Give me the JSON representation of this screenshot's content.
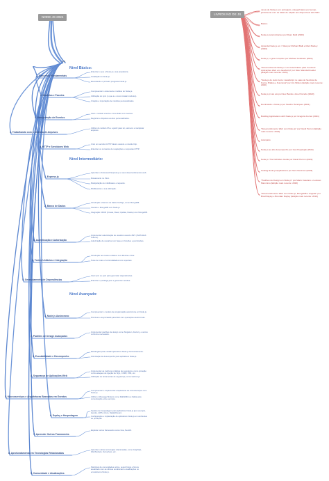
{
  "left_root": {
    "title": "NODE JS 2024"
  },
  "right_root": {
    "title": "LIVROS NO DE JS"
  },
  "hub_label": "nodl",
  "sections": [
    {
      "title": "Nível Básico:"
    },
    {
      "title": "Nível Intermediário:"
    },
    {
      "title": "Nível Avançado:"
    }
  ],
  "topics": [
    {
      "label": "1. Conceitos Fundamentais",
      "leaves": [
        "Entender o que é Node.js e sua arquitetura.",
        "Instalação do Node.js.",
        "Executando o primeiro programa Node.js."
      ]
    },
    {
      "label": "2. Módulos e Pacotes",
      "leaves": [
        "Compreender o sistema de módulos do Node.js.",
        "Utilização do npm (o que é e como instalar módulos).",
        "Criação e importação de módulos personalizados."
      ]
    },
    {
      "label": "3. Manipulação de Eventos",
      "leaves": [
        "Usar o módulo events e como lidar com eventos.",
        "Registrar e disparar eventos personalizados."
      ]
    },
    {
      "label": "4. Trabalhando com o Sistema de Arquivos",
      "leaves": [
        "Utilizar do módulo FS e a partir para ler, escrever e manipular arquivos."
      ]
    },
    {
      "label": "5. HTTP e Servidores Web",
      "leaves": [
        "Criar um servidor HTTP básico usando o módulo http.",
        "Entender os conceitos de requisições e respostas HTTP."
      ]
    },
    {
      "label": "1. Express.js",
      "leaves": [
        "Aprender o framework Express.js e seus desenvolvimentos web.",
        "Roteamento no JSLc.",
        "Manipulação de middleware e requests.",
        "Middlewares e sua utilização."
      ]
    },
    {
      "label": "2. Banco de Dados",
      "leaves": [
        "Introdução a bancos de dados NoSQL, como MongoDB.",
        "Usando o MongoDB com Node.js.",
        "Integração CRUD (Create, Read, Update, Delete) com MongoDB."
      ]
    },
    {
      "label": "3. Autenticação e Autorização",
      "leaves": [
        "Implementar autenticação de usuários usando JWT (JSON Web Tokens).",
        "Autorização de usuários com base em funções e permissões."
      ]
    },
    {
      "label": "4. Testes Unitários e Integração",
      "leaves": [
        "Introdução aos testes unitários com Mocha e Chai.",
        "Teste de rotas e funcionalidades com supertest."
      ]
    },
    {
      "label": "5. Gerenciamento de Dependências",
      "leaves": [
        "Usar npm ou yarn para gerenciar dependências.",
        "Entender o package.json e gerenciar versões."
      ]
    },
    {
      "label": "1. Node.js Assíncrono",
      "leaves": [
        "Compreender o modelo de programação assíncrona em Node.js.",
        "Promises e async/await para lidar com operações assíncronas."
      ]
    },
    {
      "label": "2. Padrões de Design Avançados",
      "leaves": [
        "Implementar padrões de design como Singleton, Factory, e outros conforme necessário."
      ]
    },
    {
      "label": "3. Escalabilidade e Desempenho",
      "leaves": [
        "Estratégias para escalar aplicativos Node.js horizontalmente.",
        "Otimização de desempenho para aplicativos Node.js."
      ]
    },
    {
      "label": "4. Segurança de Aplicações Web",
      "leaves": [
        "Implementar as melhores práticas de segurança, como proteção contra ataques de injeção de SQL, CSRF, XSS, etc.",
        "Utilização de ferramentas de segurança, como Helmet.js."
      ]
    },
    {
      "label": "5. Microsserviços e Arquiteturas Baseadas em Eventos",
      "leaves": [
        "Compreender e implementar arquiteturas de microsserviços com Node.js.",
        "Utilizar o Message Brokers como RabbitMQ ou Kafka para comunicação entre serviços."
      ]
    },
    {
      "label": "6. Deploy e Hospedagem",
      "leaves": [
        "Opções de hospedagem para aplicativos Node.js (por exemplo, Heroku, AWS, Azure, DigitalOcean).",
        "Configuração e implantação de aplicativos Node.js em ambientes de produção."
      ]
    },
    {
      "label": "7. Aprender Outros Frameworks",
      "leaves": [
        "Explorar outros frameworks como Koa, NestJS."
      ]
    },
    {
      "label": "8. Aprofundamento em Tecnologias Relacionadas",
      "leaves": [
        "Aprender outras tecnologias relacionadas, como GraphQL, WebSockets, Serverless, etc."
      ]
    },
    {
      "label": "9. Comunidade e Atualizações",
      "leaves": [
        "Participar de comunidades online, seguir blogs e fóruns atualizado com as últimas tendências e atualizações no ecossistema Node.js."
      ]
    }
  ],
  "books": [
    "Jesus de Node.js em português, categorizados por tempo, juntamente com as datas de edição aos disponíveis até 2024:",
    "Básico",
    "Node.js para Iniciantes por Ryan Dahl (2020)",
    "Aprenda Node.js em 7 dias por Richard Balk e Marc Baxley (2020)",
    "Node.js, o guia completo por Michael Goldstein (2021)",
    "\"Desenvolvendo Node.js: Um Guia Prático para Construir Aplicações Web em JavaScript\" por Marc Wandschneider (Edição mais recente: 2021)",
    "\"Node.js do Jeito Certo: JavaScript no Lado do Servidor de Forma Prática e Funcional\" por Jim Wilson (Edição mais recente: 2020)",
    "Node.js pr ato ato por Alex Banks e Eve Porcello (2020)",
    "Dominando o Node.js por Sandro Henriques (2021)",
    "Building Applications with Node.js por Gregório Ferraz (2021)",
    "\"Desenvolvimento Web com Node.js\" por David Herron (Edição mais recente: 2022)",
    "Avançado",
    "Node.js ao alto desempenho por Ivan Pepelnjak (2022)",
    "Node.js: The Definitive Guide por David Herron (2022)",
    "Scaling Node.js Applications por Sam Newman (2023)",
    "\"Padrões de Design em Node.js\" por Mario Casciaro e Luciano Mammino (Edição mais recente: 2020)",
    "\"Desenvolvimento Web com Node.js, MongoDB e Angular\" por Brad Dayley e Brendan Dayley (Edição mais recente: 2016)"
  ]
}
